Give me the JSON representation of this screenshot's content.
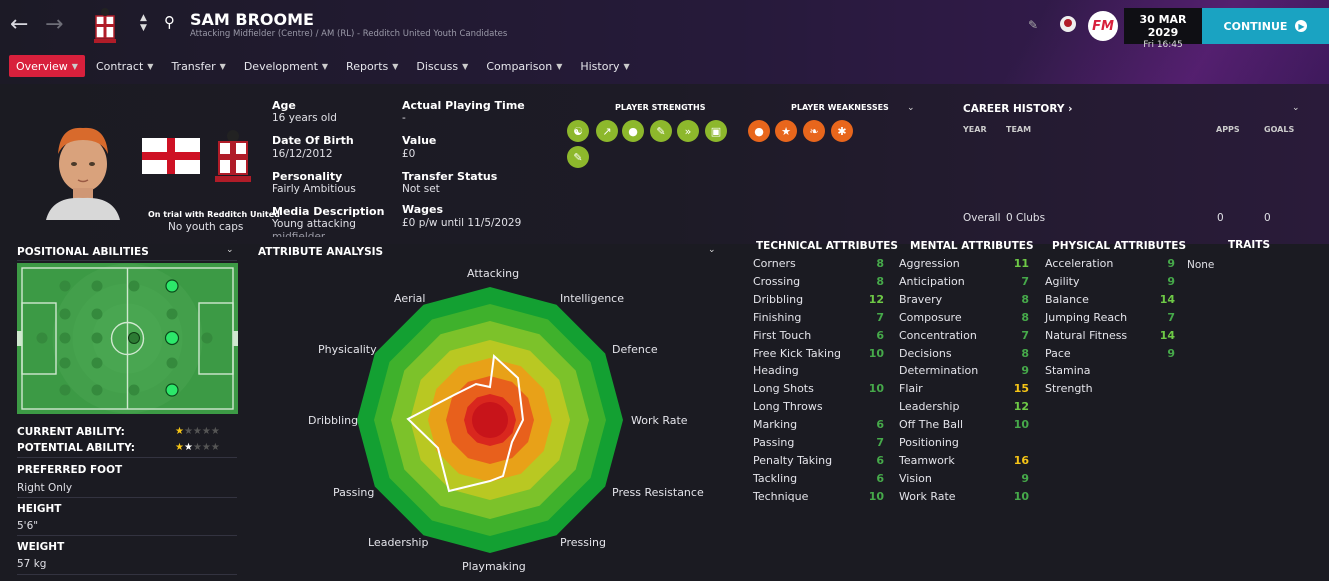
{
  "header": {
    "player_name": "SAM BROOME",
    "subtitle": "Attacking Midfielder (Centre) / AM (RL) - Redditch United Youth Candidates",
    "date": "30 MAR 2029",
    "time": "Fri 16:45",
    "continue_label": "CONTINUE",
    "fm_logo": "FM"
  },
  "tabs": [
    "Overview",
    "Contract",
    "Transfer",
    "Development",
    "Reports",
    "Discuss",
    "Comparison",
    "History"
  ],
  "profile": {
    "trial_text": "On trial with Redditch United",
    "caps_text": "No youth caps",
    "nation_flag": "england-flag",
    "age_label": "Age",
    "age_value": "16 years old",
    "dob_label": "Date Of Birth",
    "dob_value": "16/12/2012",
    "personality_label": "Personality",
    "personality_value": "Fairly Ambitious",
    "media_label": "Media Description",
    "media_value": "Young attacking",
    "media_value_cont": "midfielder",
    "apt_label": "Actual Playing Time",
    "apt_value": "-",
    "value_label": "Value",
    "value_value": "£0",
    "transfer_label": "Transfer Status",
    "transfer_value": "Not set",
    "wages_label": "Wages",
    "wages_value": "£0 p/w until 11/5/2029"
  },
  "strengths": {
    "title": "PLAYER STRENGTHS",
    "icons": [
      "teamwork-icon",
      "improving-icon",
      "mental-icon",
      "flair-icon",
      "pace-icon",
      "field-icon",
      "notes-icon"
    ]
  },
  "weaknesses": {
    "title": "PLAYER WEAKNESSES",
    "icons": [
      "aggression-icon",
      "star-icon",
      "foot-icon",
      "physical-icon"
    ]
  },
  "career": {
    "title": "CAREER HISTORY",
    "col_year": "YEAR",
    "col_team": "TEAM",
    "col_apps": "APPS",
    "col_goals": "GOALS",
    "overall_label": "Overall",
    "overall_clubs": "0 Clubs",
    "overall_apps": "0",
    "overall_goals": "0"
  },
  "positional": {
    "title": "POSITIONAL ABILITIES",
    "current_ability_label": "CURRENT ABILITY:",
    "potential_ability_label": "POTENTIAL ABILITY:",
    "current_ability_stars": 0.5,
    "potential_ability_stars": 2,
    "preferred_foot_label": "PREFERRED FOOT",
    "preferred_foot_value": "Right Only",
    "height_label": "HEIGHT",
    "height_value": "5'6\"",
    "weight_label": "WEIGHT",
    "weight_value": "57 kg"
  },
  "attribute_analysis": {
    "title": "ATTRIBUTE ANALYSIS",
    "labels": [
      "Attacking",
      "Intelligence",
      "Defence",
      "Work Rate",
      "Press Resistance",
      "Pressing",
      "Playmaking",
      "Leadership",
      "Passing",
      "Dribbling",
      "Physicality",
      "Aerial"
    ]
  },
  "technical": {
    "title": "TECHNICAL ATTRIBUTES",
    "items": [
      {
        "name": "Corners",
        "value": "8"
      },
      {
        "name": "Crossing",
        "value": "8"
      },
      {
        "name": "Dribbling",
        "value": "12"
      },
      {
        "name": "Finishing",
        "value": "7"
      },
      {
        "name": "First Touch",
        "value": "6"
      },
      {
        "name": "Free Kick Taking",
        "value": "10"
      },
      {
        "name": "Heading",
        "value": ""
      },
      {
        "name": "Long Shots",
        "value": "10"
      },
      {
        "name": "Long Throws",
        "value": ""
      },
      {
        "name": "Marking",
        "value": "6"
      },
      {
        "name": "Passing",
        "value": "7"
      },
      {
        "name": "Penalty Taking",
        "value": "6"
      },
      {
        "name": "Tackling",
        "value": "6"
      },
      {
        "name": "Technique",
        "value": "10"
      }
    ]
  },
  "mental": {
    "title": "MENTAL ATTRIBUTES",
    "items": [
      {
        "name": "Aggression",
        "value": "11"
      },
      {
        "name": "Anticipation",
        "value": "7"
      },
      {
        "name": "Bravery",
        "value": "8"
      },
      {
        "name": "Composure",
        "value": "8"
      },
      {
        "name": "Concentration",
        "value": "7"
      },
      {
        "name": "Decisions",
        "value": "8"
      },
      {
        "name": "Determination",
        "value": "9"
      },
      {
        "name": "Flair",
        "value": "15"
      },
      {
        "name": "Leadership",
        "value": "12"
      },
      {
        "name": "Off The Ball",
        "value": "10"
      },
      {
        "name": "Positioning",
        "value": ""
      },
      {
        "name": "Teamwork",
        "value": "16"
      },
      {
        "name": "Vision",
        "value": "9"
      },
      {
        "name": "Work Rate",
        "value": "10"
      }
    ]
  },
  "physical": {
    "title": "PHYSICAL ATTRIBUTES",
    "items": [
      {
        "name": "Acceleration",
        "value": "9"
      },
      {
        "name": "Agility",
        "value": "9"
      },
      {
        "name": "Balance",
        "value": "14"
      },
      {
        "name": "Jumping Reach",
        "value": "7"
      },
      {
        "name": "Natural Fitness",
        "value": "14"
      },
      {
        "name": "Pace",
        "value": "9"
      },
      {
        "name": "Stamina",
        "value": ""
      },
      {
        "name": "Strength",
        "value": ""
      }
    ]
  },
  "traits": {
    "title": "TRAITS",
    "value": "None"
  },
  "colors": {
    "accent_red": "#d8203c",
    "continue_blue": "#1aa3c2",
    "pitch_green": "#3fa14a",
    "strength_green": "#8db82c",
    "weakness_orange": "#e8661c",
    "attr_yellow": "#f5c416"
  }
}
